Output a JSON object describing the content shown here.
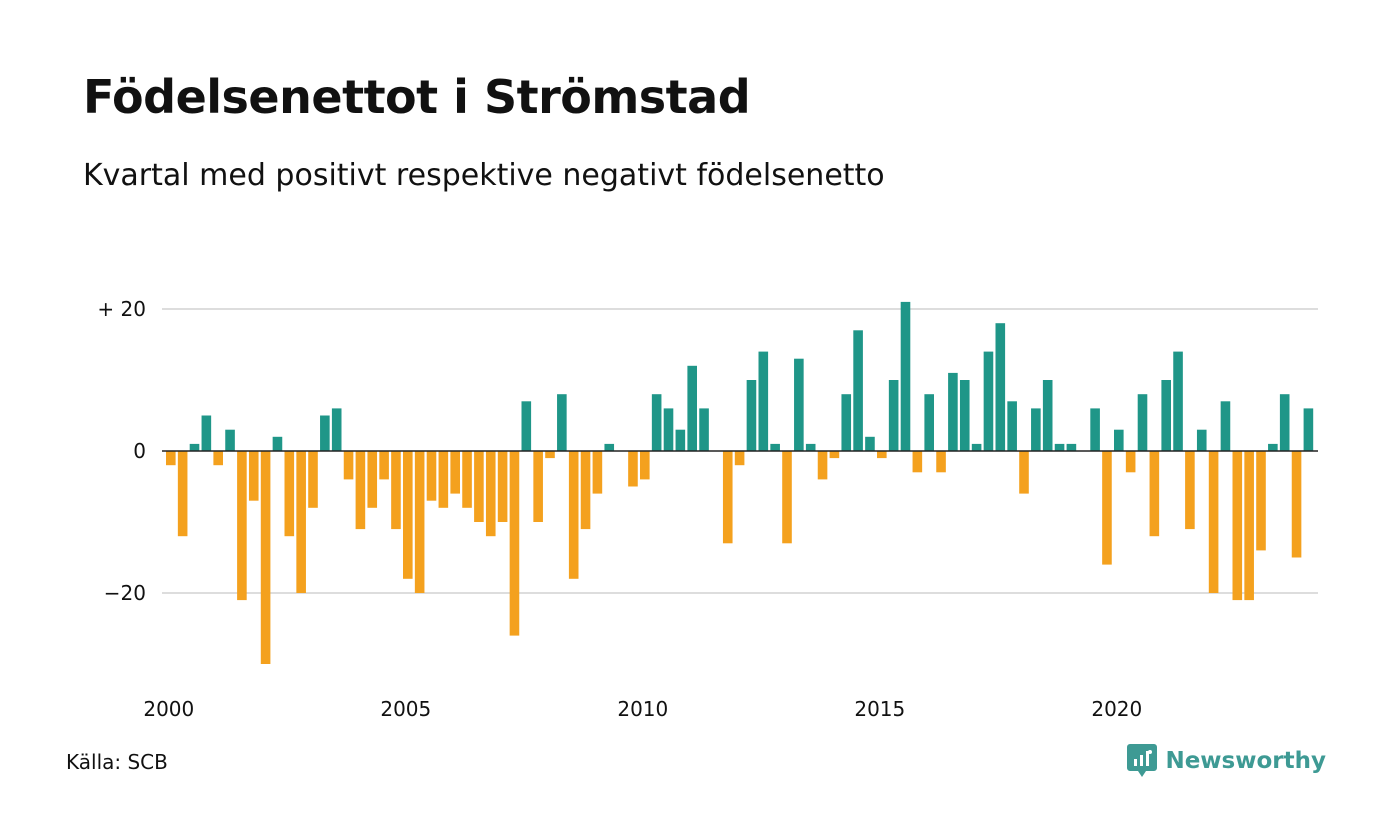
{
  "chart_data": {
    "type": "bar",
    "title": "Födelsenettot i Strömstad",
    "subtitle": "Kvartal med positivt respektive negativt födelsenetto",
    "source": "Källa: SCB",
    "xlabel": "",
    "ylabel": "",
    "ylim": [
      -30,
      21
    ],
    "yticks": [
      {
        "value": 20,
        "label": "+ 20"
      },
      {
        "value": 0,
        "label": "0"
      },
      {
        "value": -20,
        "label": "−20"
      }
    ],
    "xticks": [
      {
        "year": 2000,
        "label": "2000"
      },
      {
        "year": 2005,
        "label": "2005"
      },
      {
        "year": 2010,
        "label": "2010"
      },
      {
        "year": 2015,
        "label": "2015"
      },
      {
        "year": 2020,
        "label": "2020"
      }
    ],
    "start_year": 2000,
    "grid": true,
    "legend": "none",
    "positive_color": "#1f9688",
    "negative_color": "#f4a11e",
    "values": [
      -2,
      -12,
      1,
      5,
      -2,
      3,
      -21,
      -7,
      -30,
      2,
      -12,
      -20,
      -8,
      5,
      6,
      -4,
      -11,
      -8,
      -4,
      -11,
      -18,
      -20,
      -7,
      -8,
      -6,
      -8,
      -10,
      -12,
      -10,
      -26,
      7,
      -10,
      -1,
      8,
      -18,
      -11,
      -6,
      1,
      0,
      -5,
      -4,
      8,
      6,
      3,
      12,
      6,
      0,
      -13,
      -2,
      10,
      14,
      1,
      -13,
      13,
      1,
      -4,
      -1,
      8,
      17,
      2,
      -1,
      10,
      21,
      -3,
      8,
      -3,
      11,
      10,
      1,
      14,
      18,
      7,
      -6,
      6,
      10,
      1,
      1,
      0,
      6,
      -16,
      3,
      -3,
      8,
      -12,
      10,
      14,
      -11,
      3,
      -20,
      7,
      -21,
      -21,
      -14,
      1,
      8,
      -15,
      6
    ]
  },
  "brand": {
    "name": "Newsworthy",
    "color": "#3e9a94",
    "icon": "newsworthy-logo-icon"
  }
}
